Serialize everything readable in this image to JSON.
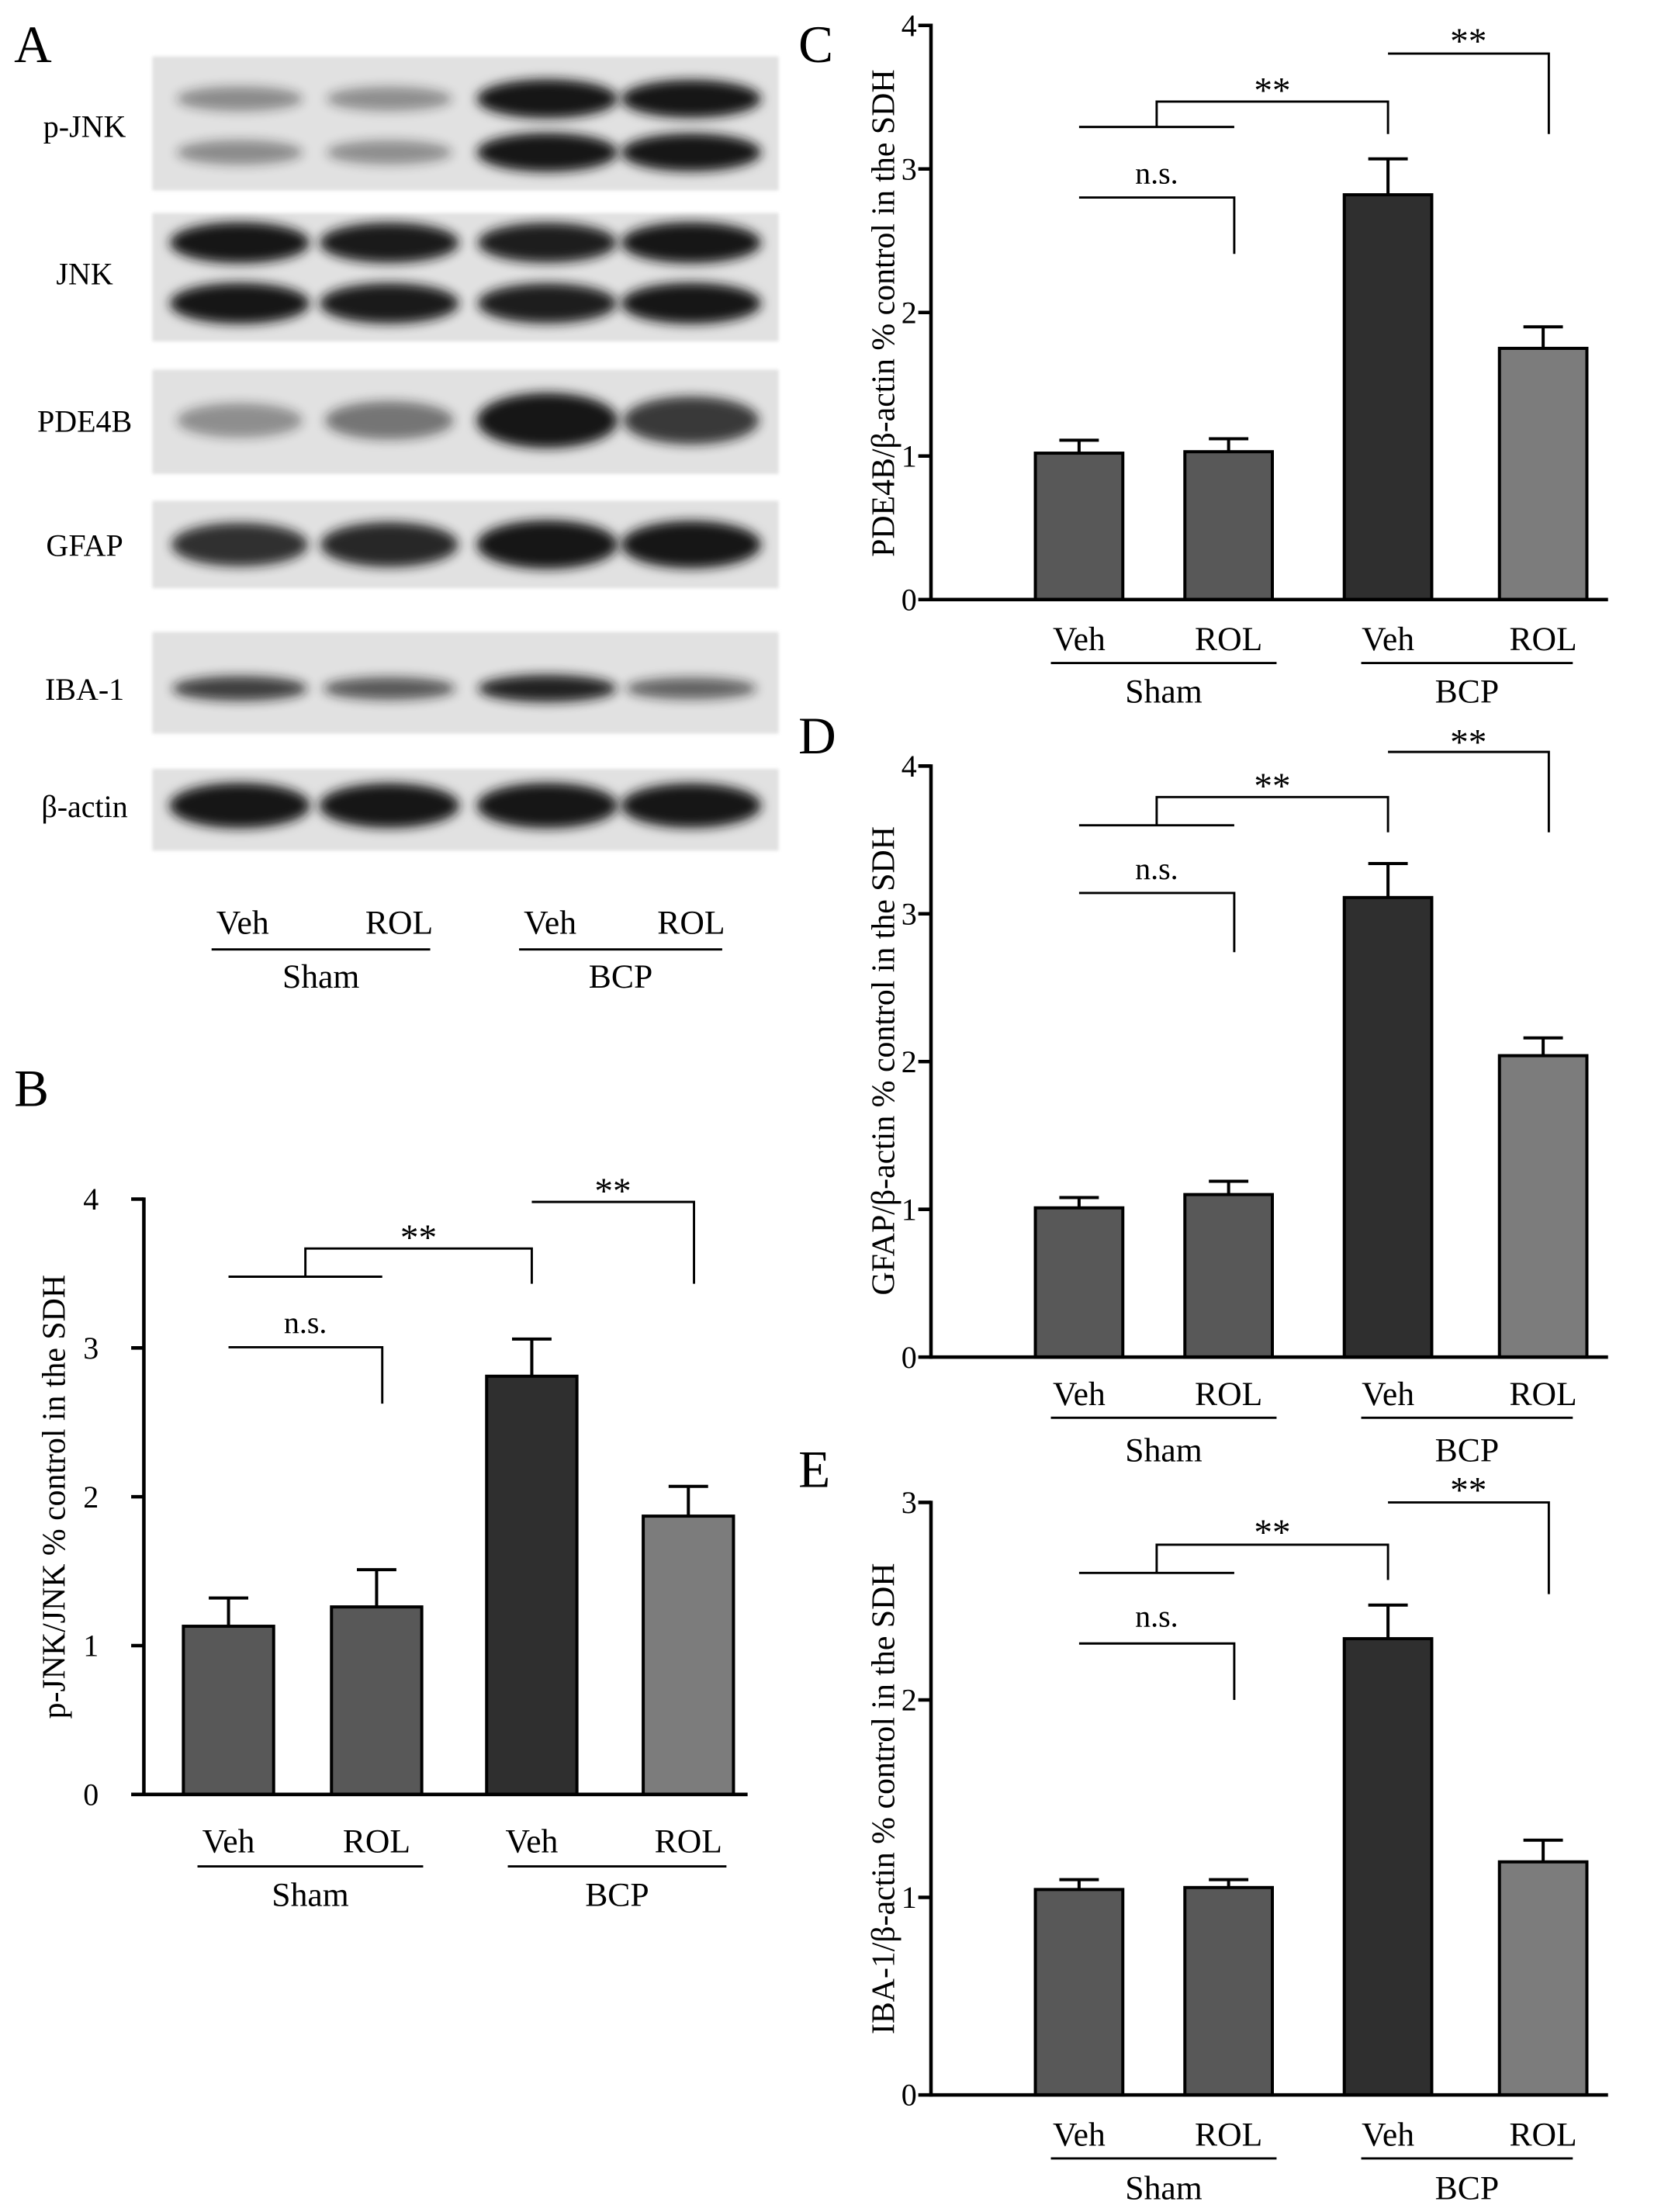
{
  "blot": {
    "panel": "A",
    "membrane_color": "#e1e1e1",
    "band_color": "#141414",
    "rows": [
      {
        "protein": "p-JNK",
        "bands_per_lane": 2,
        "intensity": [
          0.3,
          0.28,
          1.0,
          0.95
        ]
      },
      {
        "protein": "JNK",
        "bands_per_lane": 2,
        "intensity": [
          0.95,
          0.92,
          0.9,
          0.95
        ]
      },
      {
        "protein": "PDE4B",
        "bands_per_lane": 1,
        "intensity": [
          0.28,
          0.42,
          1.0,
          0.75
        ]
      },
      {
        "protein": "GFAP",
        "bands_per_lane": 1,
        "intensity": [
          0.8,
          0.85,
          1.0,
          0.95
        ]
      },
      {
        "protein": "IBA-1",
        "bands_per_lane": 1,
        "intensity": [
          0.72,
          0.58,
          0.88,
          0.52
        ]
      },
      {
        "protein": "β-actin",
        "bands_per_lane": 1,
        "intensity": [
          1.0,
          0.97,
          1.0,
          0.96
        ]
      }
    ],
    "lanes": [
      "Veh",
      "ROL",
      "Veh",
      "ROL"
    ],
    "groups": [
      {
        "name": "Sham",
        "lanes": [
          0,
          1
        ]
      },
      {
        "name": "BCP",
        "lanes": [
          2,
          3
        ]
      }
    ]
  },
  "chart_data": [
    {
      "panel": "B",
      "type": "bar",
      "categories": [
        "Veh",
        "ROL",
        "Veh",
        "ROL"
      ],
      "groups": [
        {
          "name": "Sham",
          "categories": [
            0,
            1
          ]
        },
        {
          "name": "BCP",
          "categories": [
            2,
            3
          ]
        }
      ],
      "values": [
        1.13,
        1.26,
        2.81,
        1.87
      ],
      "errors": [
        0.19,
        0.25,
        0.25,
        0.2
      ],
      "ylabel": "p-JNK/JNK % control in the SDH",
      "ylim": [
        0,
        4
      ],
      "yticks": [
        0,
        1,
        2,
        3,
        4
      ],
      "grid": false,
      "bar_colors": [
        "#585858",
        "#585858",
        "#2f2f2f",
        "#7c7c7c"
      ],
      "annotations": [
        {
          "text": "n.s.",
          "compare": [
            0,
            1
          ]
        },
        {
          "text": "**",
          "compare": [
            [
              0,
              1
            ],
            2
          ]
        },
        {
          "text": "**",
          "compare": [
            2,
            3
          ]
        }
      ]
    },
    {
      "panel": "C",
      "type": "bar",
      "categories": [
        "Veh",
        "ROL",
        "Veh",
        "ROL"
      ],
      "groups": [
        {
          "name": "Sham",
          "categories": [
            0,
            1
          ]
        },
        {
          "name": "BCP",
          "categories": [
            2,
            3
          ]
        }
      ],
      "values": [
        1.02,
        1.03,
        2.82,
        1.75
      ],
      "errors": [
        0.09,
        0.09,
        0.25,
        0.15
      ],
      "ylabel": "PDE4B/β-actin % control in the SDH",
      "ylim": [
        0,
        4
      ],
      "yticks": [
        0,
        1,
        2,
        3,
        4
      ],
      "grid": false,
      "bar_colors": [
        "#585858",
        "#585858",
        "#2f2f2f",
        "#7c7c7c"
      ],
      "annotations": [
        {
          "text": "n.s.",
          "compare": [
            0,
            1
          ]
        },
        {
          "text": "**",
          "compare": [
            [
              0,
              1
            ],
            2
          ]
        },
        {
          "text": "**",
          "compare": [
            2,
            3
          ]
        }
      ]
    },
    {
      "panel": "D",
      "type": "bar",
      "categories": [
        "Veh",
        "ROL",
        "Veh",
        "ROL"
      ],
      "groups": [
        {
          "name": "Sham",
          "categories": [
            0,
            1
          ]
        },
        {
          "name": "BCP",
          "categories": [
            2,
            3
          ]
        }
      ],
      "values": [
        1.01,
        1.1,
        3.11,
        2.04
      ],
      "errors": [
        0.07,
        0.09,
        0.23,
        0.12
      ],
      "ylabel": "GFAP/β-actin % control in the SDH",
      "ylim": [
        0,
        4
      ],
      "yticks": [
        0,
        1,
        2,
        3,
        4
      ],
      "grid": false,
      "bar_colors": [
        "#585858",
        "#585858",
        "#2f2f2f",
        "#7c7c7c"
      ],
      "annotations": [
        {
          "text": "n.s.",
          "compare": [
            0,
            1
          ]
        },
        {
          "text": "**",
          "compare": [
            [
              0,
              1
            ],
            2
          ]
        },
        {
          "text": "**",
          "compare": [
            2,
            3
          ]
        }
      ]
    },
    {
      "panel": "E",
      "type": "bar",
      "categories": [
        "Veh",
        "ROL",
        "Veh",
        "ROL"
      ],
      "groups": [
        {
          "name": "Sham",
          "categories": [
            0,
            1
          ]
        },
        {
          "name": "BCP",
          "categories": [
            2,
            3
          ]
        }
      ],
      "values": [
        1.04,
        1.05,
        2.31,
        1.18
      ],
      "errors": [
        0.05,
        0.04,
        0.17,
        0.11
      ],
      "ylabel": "IBA-1/β-actin % control in the SDH",
      "ylim": [
        0,
        3
      ],
      "yticks": [
        0,
        1,
        2,
        3
      ],
      "grid": false,
      "bar_colors": [
        "#585858",
        "#585858",
        "#2f2f2f",
        "#7c7c7c"
      ],
      "annotations": [
        {
          "text": "n.s.",
          "compare": [
            0,
            1
          ]
        },
        {
          "text": "**",
          "compare": [
            [
              0,
              1
            ],
            2
          ]
        },
        {
          "text": "**",
          "compare": [
            2,
            3
          ]
        }
      ]
    }
  ]
}
